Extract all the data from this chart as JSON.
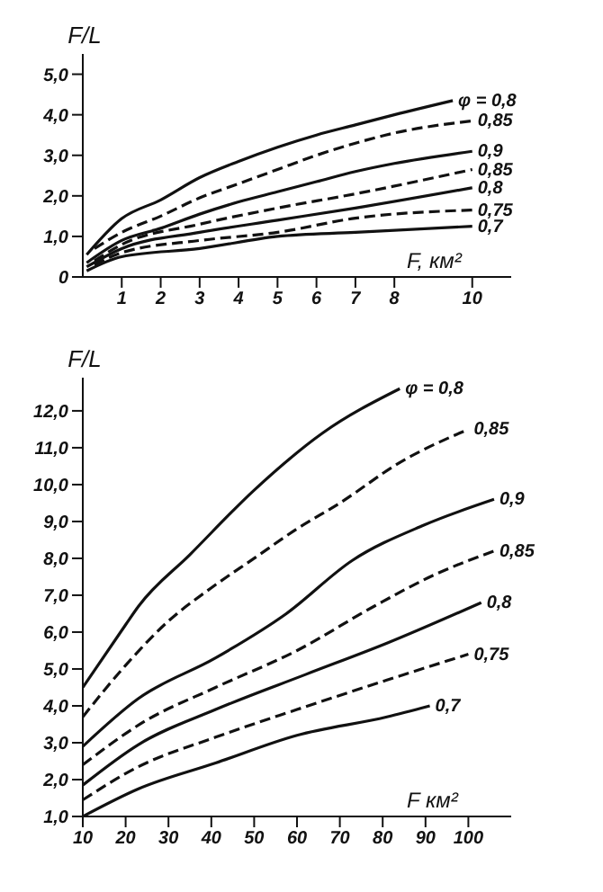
{
  "chart_data": [
    {
      "type": "line",
      "xlabel": "F, км²",
      "ylabel": "F/L",
      "xlim": [
        0,
        11
      ],
      "ylim": [
        0,
        5.5
      ],
      "xticks": [
        1,
        2,
        3,
        4,
        5,
        6,
        7,
        8,
        10
      ],
      "yticks": [
        0,
        {
          "value": 1,
          "label": "1,0"
        },
        {
          "value": 2,
          "label": "2,0"
        },
        {
          "value": 3,
          "label": "3,0"
        },
        {
          "value": 4,
          "label": "4,0"
        },
        {
          "value": 5,
          "label": "5,0"
        }
      ],
      "grid": false,
      "legend": false,
      "marker": "none",
      "series": [
        {
          "name": "φ = 0,8",
          "color": "#111111",
          "line_style": "solid",
          "x": [
            0.1,
            1,
            2,
            3,
            4,
            5,
            6,
            7,
            8,
            9.5
          ],
          "values": [
            0.55,
            1.44,
            1.9,
            2.45,
            2.85,
            3.2,
            3.5,
            3.75,
            4.0,
            4.35
          ]
        },
        {
          "name": "0,85",
          "color": "#111111",
          "line_style": "dashed",
          "x": [
            0.3,
            1,
            2,
            3,
            4,
            5,
            6,
            7,
            8,
            10
          ],
          "values": [
            0.7,
            1.1,
            1.5,
            1.95,
            2.3,
            2.65,
            3.0,
            3.3,
            3.55,
            3.85
          ]
        },
        {
          "name": "0,9",
          "color": "#111111",
          "line_style": "solid",
          "x": [
            0.1,
            1,
            2,
            3,
            4,
            5,
            6,
            7,
            8,
            10
          ],
          "values": [
            0.35,
            0.9,
            1.2,
            1.55,
            1.85,
            2.1,
            2.35,
            2.6,
            2.8,
            3.1
          ]
        },
        {
          "name": "0,85",
          "color": "#111111",
          "line_style": "dashed",
          "x": [
            0.3,
            1,
            3,
            5,
            7,
            10
          ],
          "values": [
            0.4,
            0.8,
            1.3,
            1.7,
            2.05,
            2.65
          ]
        },
        {
          "name": "0,8",
          "color": "#111111",
          "line_style": "solid",
          "x": [
            0.1,
            1,
            3,
            5,
            7,
            10
          ],
          "values": [
            0.25,
            0.7,
            1.1,
            1.4,
            1.7,
            2.2
          ]
        },
        {
          "name": "0,75",
          "color": "#111111",
          "line_style": "dashed",
          "x": [
            0.3,
            1,
            3,
            5,
            7,
            10
          ],
          "values": [
            0.3,
            0.6,
            0.9,
            1.1,
            1.45,
            1.65
          ]
        },
        {
          "name": "0,7",
          "color": "#111111",
          "line_style": "solid",
          "x": [
            0.1,
            1,
            3,
            5,
            7,
            10
          ],
          "values": [
            0.15,
            0.5,
            0.7,
            1.0,
            1.1,
            1.25
          ]
        }
      ]
    },
    {
      "type": "line",
      "xlabel": "F км²",
      "ylabel": "F/L",
      "xlim": [
        10,
        110
      ],
      "ylim": [
        1,
        12.9
      ],
      "xticks": [
        10,
        20,
        30,
        40,
        50,
        60,
        70,
        80,
        90,
        100
      ],
      "yticks": [
        {
          "value": 1,
          "label": "1,0"
        },
        {
          "value": 2,
          "label": "2,0"
        },
        {
          "value": 3,
          "label": "3,0"
        },
        {
          "value": 4,
          "label": "4,0"
        },
        {
          "value": 5,
          "label": "5,0"
        },
        {
          "value": 6,
          "label": "6,0"
        },
        {
          "value": 7,
          "label": "7,0"
        },
        {
          "value": 8,
          "label": "8,0"
        },
        {
          "value": 9,
          "label": "9,0"
        },
        {
          "value": 10,
          "label": "10,0"
        },
        {
          "value": 11,
          "label": "11,0"
        },
        {
          "value": 12,
          "label": "12,0"
        }
      ],
      "grid": false,
      "legend": false,
      "marker": "none",
      "series": [
        {
          "name": "φ = 0,8",
          "color": "#111111",
          "line_style": "solid",
          "x": [
            10,
            20,
            23,
            35,
            50,
            66,
            84
          ],
          "values": [
            4.5,
            6.2,
            6.7,
            8.1,
            9.85,
            11.4,
            12.6
          ]
        },
        {
          "name": "0,85",
          "color": "#111111",
          "line_style": "dashed",
          "x": [
            10,
            20,
            30,
            40,
            50,
            60,
            70,
            84,
            100
          ],
          "values": [
            3.7,
            5.1,
            6.3,
            7.2,
            8.0,
            8.8,
            9.5,
            10.6,
            11.5
          ]
        },
        {
          "name": "0,9",
          "color": "#111111",
          "line_style": "solid",
          "x": [
            10,
            23,
            41,
            57.5,
            73,
            89.6,
            106
          ],
          "values": [
            2.9,
            4.2,
            5.3,
            6.5,
            7.95,
            8.9,
            9.6
          ]
        },
        {
          "name": "0,85",
          "color": "#111111",
          "line_style": "dashed",
          "x": [
            10,
            24,
            41,
            60,
            78,
            92,
            106
          ],
          "values": [
            2.4,
            3.55,
            4.5,
            5.5,
            6.7,
            7.55,
            8.2
          ]
        },
        {
          "name": "0,8",
          "color": "#111111",
          "line_style": "solid",
          "x": [
            10,
            23,
            41,
            62,
            81,
            103
          ],
          "values": [
            1.85,
            2.95,
            3.9,
            4.85,
            5.7,
            6.8
          ]
        },
        {
          "name": "0,75",
          "color": "#111111",
          "line_style": "dashed",
          "x": [
            10,
            23,
            41,
            60,
            81,
            100
          ],
          "values": [
            1.45,
            2.35,
            3.15,
            3.9,
            4.7,
            5.4
          ]
        },
        {
          "name": "0,7",
          "color": "#111111",
          "line_style": "solid",
          "x": [
            10,
            23,
            41,
            60,
            81,
            91
          ],
          "values": [
            1.0,
            1.75,
            2.45,
            3.2,
            3.7,
            4.0
          ]
        }
      ]
    }
  ]
}
